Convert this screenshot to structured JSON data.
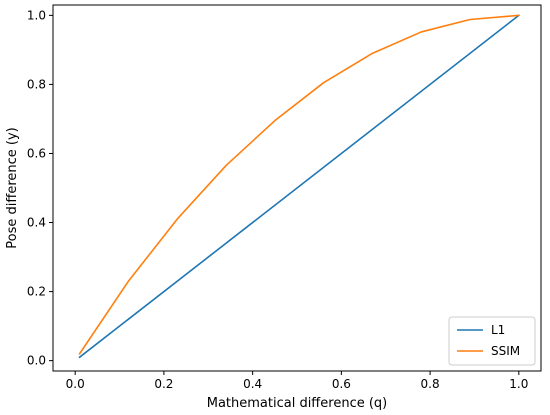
{
  "chart_data": {
    "type": "line",
    "title": "",
    "xlabel": "Mathematical difference (q)",
    "ylabel": "Pose difference (y)",
    "xlim": [
      -0.05,
      1.05
    ],
    "ylim": [
      -0.03,
      1.03
    ],
    "xticks": [
      0.0,
      0.2,
      0.4,
      0.6,
      0.8,
      1.0
    ],
    "yticks": [
      0.0,
      0.2,
      0.4,
      0.6,
      0.8,
      1.0
    ],
    "xtick_labels": [
      "0.0",
      "0.2",
      "0.4",
      "0.6",
      "0.8",
      "1.0"
    ],
    "ytick_labels": [
      "0.0",
      "0.2",
      "0.4",
      "0.6",
      "0.8",
      "1.0"
    ],
    "grid": false,
    "legend_position": "lower-right",
    "series": [
      {
        "name": "L1",
        "color": "#1f77b4",
        "x": [
          0.01,
          1.0
        ],
        "y": [
          0.01,
          1.0
        ]
      },
      {
        "name": "SSIM",
        "color": "#ff7f0e",
        "x": [
          0.01,
          0.12,
          0.23,
          0.34,
          0.45,
          0.56,
          0.67,
          0.78,
          0.89,
          1.0
        ],
        "y": [
          0.02,
          0.23,
          0.41,
          0.565,
          0.695,
          0.805,
          0.89,
          0.952,
          0.988,
          1.0
        ]
      }
    ]
  }
}
